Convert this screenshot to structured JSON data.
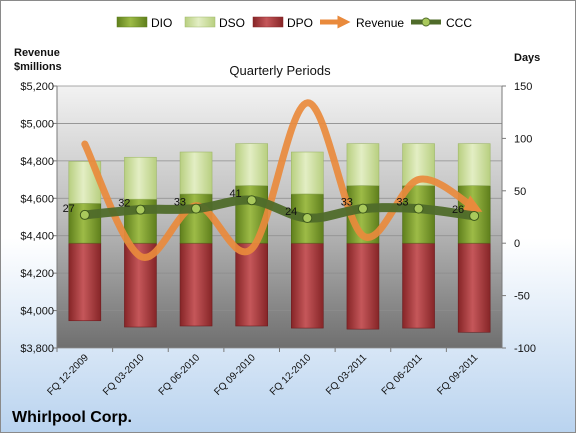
{
  "chart_data": {
    "type": "bar",
    "title": "Quarterly Periods",
    "company": "Whirlpool Corp.",
    "left_axis_label_line1": "Revenue",
    "left_axis_label_line2": "$millions",
    "right_axis_label": "Days",
    "categories": [
      "FQ 12-2009",
      "FQ 03-2010",
      "FQ 06-2010",
      "FQ 09-2010",
      "FQ 12-2010",
      "FQ 03-2011",
      "FQ 06-2011",
      "FQ 09-2011"
    ],
    "left_axis": {
      "min": 3800,
      "max": 5200,
      "step": 200,
      "ticks": [
        "$3,800",
        "$4,000",
        "$4,200",
        "$4,400",
        "$4,600",
        "$4,800",
        "$5,000",
        "$5,200"
      ]
    },
    "right_axis": {
      "min": -100,
      "max": 150,
      "step": 50,
      "ticks": [
        "-100",
        "-50",
        "0",
        "50",
        "100",
        "150"
      ]
    },
    "series": [
      {
        "name": "DIO",
        "axis": "days",
        "values": [
          38,
          42,
          47,
          55,
          47,
          55,
          55,
          55
        ],
        "color": "#7a9a2a"
      },
      {
        "name": "DSO",
        "axis": "days",
        "values": [
          40,
          40,
          40,
          40,
          40,
          40,
          40,
          40
        ],
        "color": "#d2e3a2"
      },
      {
        "name": "DPO",
        "axis": "days",
        "values": [
          -74,
          -80,
          -79,
          -79,
          -81,
          -82,
          -81,
          -85
        ],
        "color": "#a83438"
      },
      {
        "name": "Revenue",
        "axis": "revenue",
        "values": [
          4890,
          4290,
          4560,
          4330,
          5110,
          4400,
          4700,
          4550
        ],
        "color": "#e98a3c"
      },
      {
        "name": "CCC",
        "axis": "days",
        "values": [
          27,
          32,
          33,
          41,
          24,
          33,
          33,
          26
        ],
        "color": "#4f6b2a"
      }
    ],
    "ccc_labels": [
      "27",
      "32",
      "33",
      "41",
      "24",
      "33",
      "33",
      "26"
    ],
    "legend_placement": "top",
    "grid": true
  }
}
